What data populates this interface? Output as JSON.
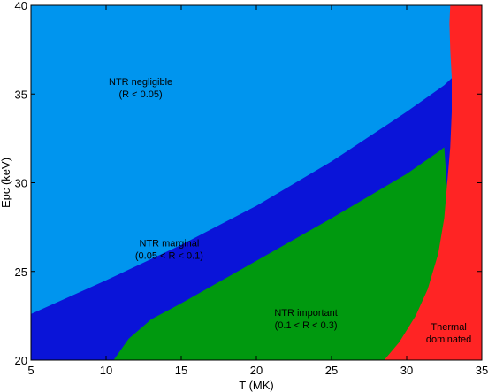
{
  "chart_data": {
    "type": "area",
    "xlabel": "T (MK)",
    "ylabel": "Epc (keV)",
    "xlim": [
      5,
      35
    ],
    "ylim": [
      20,
      40
    ],
    "xticks": [
      "5",
      "10",
      "15",
      "20",
      "25",
      "30",
      "35"
    ],
    "yticks": [
      "20",
      "25",
      "30",
      "35",
      "40"
    ],
    "grid": false,
    "regions": [
      {
        "name": "negligible",
        "color": "#0095ee",
        "labels": [
          "NTR negligible",
          "(R < 0.05)"
        ],
        "label_pos": {
          "x": 12.3,
          "y": 35.5
        }
      },
      {
        "name": "marginal",
        "color": "#0a14d8",
        "labels": [
          "NTR marginal",
          "(0.05 < R < 0.1)"
        ],
        "label_pos": {
          "x": 14.2,
          "y": 26.4
        },
        "upper_boundary": [
          [
            5,
            22.6
          ],
          [
            10,
            24.5
          ],
          [
            15,
            26.5
          ],
          [
            20,
            28.7
          ],
          [
            25,
            31.2
          ],
          [
            30,
            34.0
          ],
          [
            32.5,
            35.5
          ],
          [
            33.0,
            35.9
          ]
        ]
      },
      {
        "name": "important",
        "color": "#00990f",
        "labels": [
          "NTR important",
          "(0.1 < R < 0.3)"
        ],
        "label_pos": {
          "x": 23.3,
          "y": 22.5
        },
        "upper_boundary": [
          [
            10.5,
            20.0
          ],
          [
            11.5,
            21.2
          ],
          [
            13,
            22.3
          ],
          [
            15,
            23.2
          ],
          [
            20,
            25.6
          ],
          [
            25,
            28.0
          ],
          [
            30,
            30.5
          ],
          [
            32.2,
            31.8
          ],
          [
            32.5,
            32.0
          ]
        ]
      },
      {
        "name": "thermal",
        "color": "#ff2424",
        "labels": [
          "Thermal",
          "dominated"
        ],
        "label_pos": {
          "x": 32.8,
          "y": 21.7
        },
        "left_boundary": [
          [
            28.5,
            20.0
          ],
          [
            29.5,
            21.0
          ],
          [
            30.6,
            22.5
          ],
          [
            31.4,
            24.0
          ],
          [
            32.1,
            26.0
          ],
          [
            32.5,
            28.0
          ],
          [
            32.7,
            30.0
          ],
          [
            32.9,
            32.0
          ],
          [
            33.0,
            34.0
          ],
          [
            33.0,
            35.9
          ],
          [
            32.9,
            37.5
          ],
          [
            32.85,
            39.0
          ],
          [
            32.9,
            40.0
          ]
        ]
      }
    ]
  }
}
